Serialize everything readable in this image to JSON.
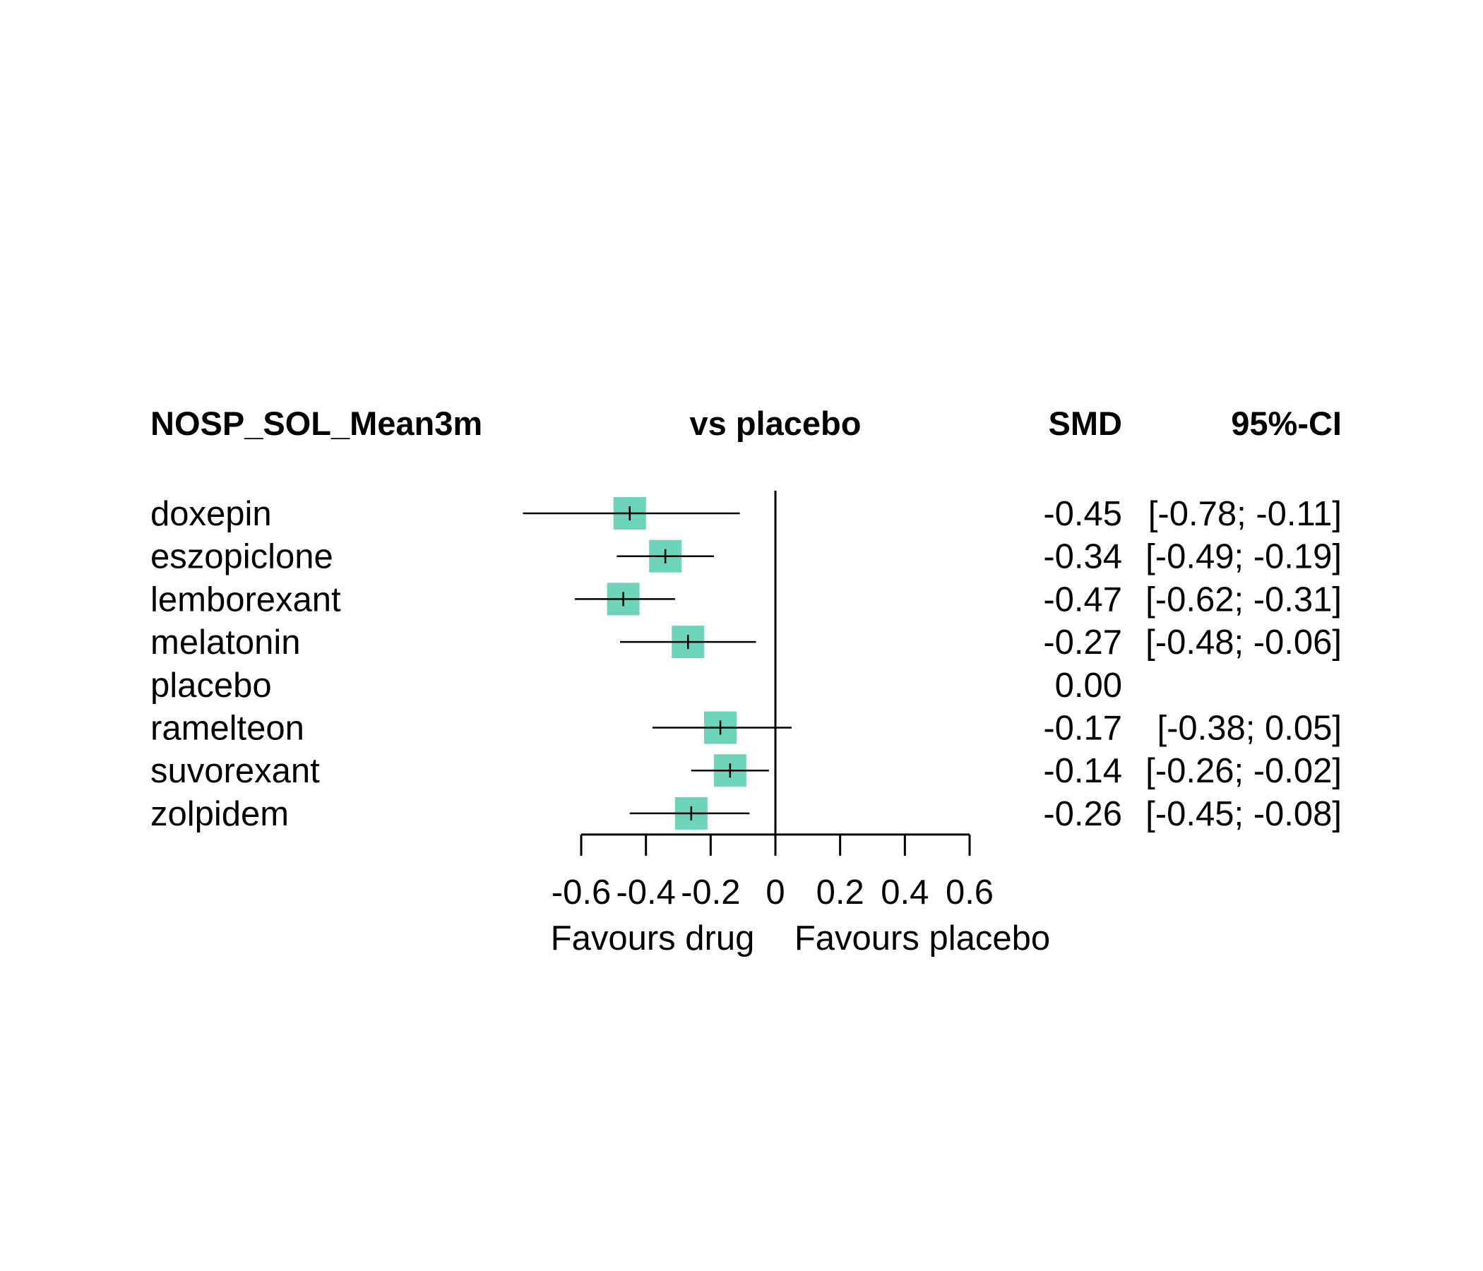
{
  "chart_data": {
    "type": "forest",
    "headers": {
      "outcome": "NOSP_SOL_Mean3m",
      "comparison": "vs placebo",
      "effect": "SMD",
      "ci": "95%-CI"
    },
    "rows": [
      {
        "treatment": "doxepin",
        "smd": -0.45,
        "lower": -0.78,
        "upper": -0.11,
        "smd_text": "-0.45",
        "ci_text": "[-0.78; -0.11]"
      },
      {
        "treatment": "eszopiclone",
        "smd": -0.34,
        "lower": -0.49,
        "upper": -0.19,
        "smd_text": "-0.34",
        "ci_text": "[-0.49; -0.19]"
      },
      {
        "treatment": "lemborexant",
        "smd": -0.47,
        "lower": -0.62,
        "upper": -0.31,
        "smd_text": "-0.47",
        "ci_text": "[-0.62; -0.31]"
      },
      {
        "treatment": "melatonin",
        "smd": -0.27,
        "lower": -0.48,
        "upper": -0.06,
        "smd_text": "-0.27",
        "ci_text": "[-0.48; -0.06]"
      },
      {
        "treatment": "placebo",
        "smd": 0.0,
        "lower": null,
        "upper": null,
        "smd_text": "0.00",
        "ci_text": ""
      },
      {
        "treatment": "ramelteon",
        "smd": -0.17,
        "lower": -0.38,
        "upper": 0.05,
        "smd_text": "-0.17",
        "ci_text": "[-0.38;  0.05]"
      },
      {
        "treatment": "suvorexant",
        "smd": -0.14,
        "lower": -0.26,
        "upper": -0.02,
        "smd_text": "-0.14",
        "ci_text": "[-0.26; -0.02]"
      },
      {
        "treatment": "zolpidem",
        "smd": -0.26,
        "lower": -0.45,
        "upper": -0.08,
        "smd_text": "-0.26",
        "ci_text": "[-0.45; -0.08]"
      }
    ],
    "x_axis": {
      "range": [
        -0.6,
        0.6
      ],
      "ticks": [
        -0.6,
        -0.4,
        -0.2,
        0,
        0.2,
        0.4,
        0.6
      ],
      "tick_labels": [
        "-0.6",
        "-0.4",
        "-0.2",
        "0",
        "0.2",
        "0.4",
        "0.6"
      ],
      "label_left": "Favours drug",
      "label_right": "Favours placebo"
    },
    "colors": {
      "box": "#6dd3b9",
      "line": "#000000"
    }
  }
}
